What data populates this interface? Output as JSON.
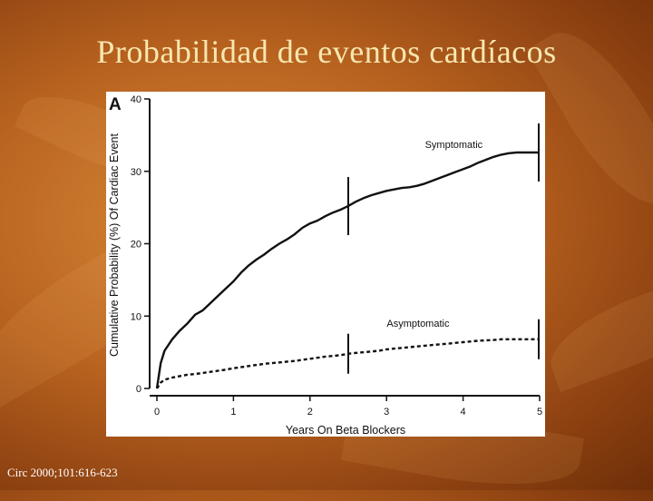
{
  "slide": {
    "title": "Probabilidad de eventos cardíacos",
    "citation": "Circ 2000;101:616-623"
  },
  "chart_data": {
    "type": "line",
    "panel_label": "A",
    "xlabel": "Years On Beta Blockers",
    "ylabel": "Cumulative Probability (%) Of Cardiac Event",
    "xlim": [
      0,
      5
    ],
    "ylim": [
      0,
      40
    ],
    "xticks": [
      0,
      1,
      2,
      3,
      4,
      5
    ],
    "yticks": [
      0,
      10,
      20,
      30,
      40
    ],
    "grid": false,
    "series": [
      {
        "name": "Symptomatic",
        "style": "solid",
        "x": [
          0,
          0.05,
          0.1,
          0.2,
          0.3,
          0.4,
          0.5,
          0.6,
          0.7,
          0.8,
          0.9,
          1.0,
          1.1,
          1.2,
          1.3,
          1.4,
          1.5,
          1.6,
          1.7,
          1.8,
          1.9,
          2.0,
          2.1,
          2.2,
          2.3,
          2.4,
          2.5,
          2.6,
          2.7,
          2.8,
          2.9,
          3.0,
          3.1,
          3.2,
          3.3,
          3.4,
          3.5,
          3.6,
          3.7,
          3.8,
          3.9,
          4.0,
          4.1,
          4.2,
          4.3,
          4.4,
          4.5,
          4.6,
          4.7,
          4.8,
          4.9,
          5.0
        ],
        "y": [
          0,
          3.5,
          5.2,
          6.8,
          8.0,
          9.0,
          10.2,
          10.8,
          11.8,
          12.8,
          13.8,
          14.8,
          16.0,
          17.0,
          17.8,
          18.5,
          19.3,
          20.0,
          20.6,
          21.3,
          22.2,
          22.8,
          23.2,
          23.8,
          24.3,
          24.7,
          25.2,
          25.8,
          26.3,
          26.7,
          27.0,
          27.3,
          27.5,
          27.7,
          27.8,
          28.0,
          28.3,
          28.7,
          29.1,
          29.5,
          29.9,
          30.3,
          30.7,
          31.2,
          31.6,
          32.0,
          32.3,
          32.5,
          32.6,
          32.6,
          32.6,
          32.6
        ]
      },
      {
        "name": "Asymptomatic",
        "style": "dashed",
        "x": [
          0,
          0.05,
          0.1,
          0.2,
          0.3,
          0.4,
          0.5,
          0.7,
          0.9,
          1.0,
          1.2,
          1.4,
          1.6,
          1.8,
          2.0,
          2.2,
          2.4,
          2.5,
          2.7,
          2.9,
          3.0,
          3.2,
          3.4,
          3.6,
          3.8,
          4.0,
          4.2,
          4.4,
          4.5,
          4.6,
          4.8,
          5.0
        ],
        "y": [
          0,
          0.8,
          1.2,
          1.5,
          1.7,
          1.9,
          2.0,
          2.3,
          2.6,
          2.8,
          3.1,
          3.4,
          3.6,
          3.8,
          4.1,
          4.4,
          4.6,
          4.8,
          5.0,
          5.2,
          5.4,
          5.6,
          5.8,
          6.0,
          6.2,
          6.4,
          6.6,
          6.7,
          6.8,
          6.8,
          6.8,
          6.8
        ]
      }
    ],
    "markers_x": [
      2.5,
      5.0
    ],
    "annotations": [
      {
        "text": "Symptomatic",
        "x": 4.0,
        "y": 32.2
      },
      {
        "text": "Asymptomatic",
        "x": 3.5,
        "y": 7.5
      }
    ]
  }
}
